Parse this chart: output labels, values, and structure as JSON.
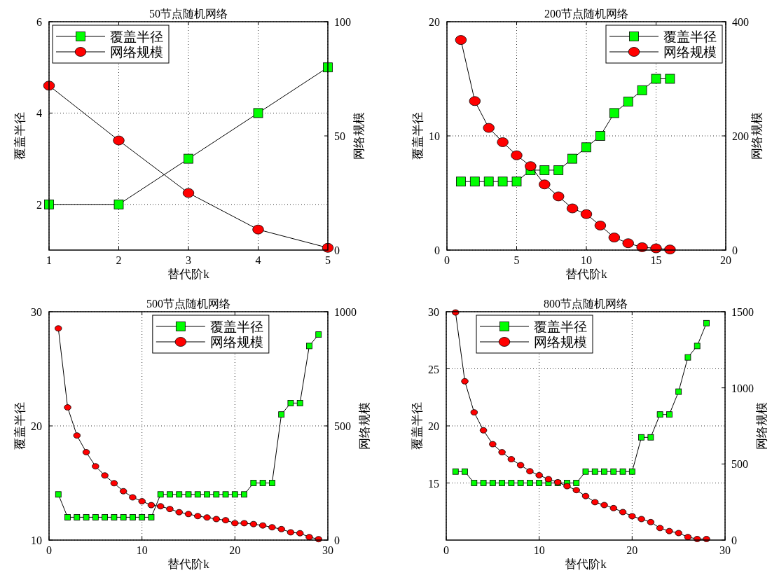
{
  "chart_data": [
    {
      "type": "line",
      "title": "50节点随机网络",
      "xlabel": "替代阶k",
      "ylabel": "覆盖半径",
      "y2label": "网络规模",
      "x": [
        1,
        2,
        3,
        4,
        5
      ],
      "xlim": [
        1,
        5
      ],
      "xticks": [
        1,
        2,
        3,
        4,
        5
      ],
      "ylim": [
        1,
        6
      ],
      "yticks": [
        2,
        4,
        6
      ],
      "y2lim": [
        0,
        100
      ],
      "y2ticks": [
        0,
        50,
        100
      ],
      "grid": true,
      "legend": "top left",
      "series": [
        {
          "name": "覆盖半径",
          "color": "#00ff00",
          "marker": "square",
          "values": [
            2,
            2,
            3,
            4,
            5
          ]
        },
        {
          "name": "网络规模",
          "color": "#ff0000",
          "marker": "circle",
          "axis": "y2",
          "values": [
            72,
            48,
            25,
            9,
            1
          ]
        }
      ]
    },
    {
      "type": "line",
      "title": "200节点随机网络",
      "xlabel": "替代阶k",
      "ylabel": "覆盖半径",
      "y2label": "网络规模",
      "x": [
        1,
        2,
        3,
        4,
        5,
        6,
        7,
        8,
        9,
        10,
        11,
        12,
        13,
        14,
        15,
        16
      ],
      "xlim": [
        0,
        20
      ],
      "xticks": [
        0,
        5,
        10,
        15,
        20
      ],
      "ylim": [
        0,
        20
      ],
      "yticks": [
        0,
        10,
        20
      ],
      "y2lim": [
        0,
        400
      ],
      "y2ticks": [
        0,
        200,
        400
      ],
      "grid": true,
      "legend": "top right",
      "series": [
        {
          "name": "覆盖半径",
          "color": "#00ff00",
          "marker": "square",
          "values": [
            6,
            6,
            6,
            6,
            6,
            7,
            7,
            7,
            8,
            9,
            10,
            12,
            13,
            14,
            15,
            15
          ]
        },
        {
          "name": "网络规模",
          "color": "#ff0000",
          "marker": "circle",
          "axis": "y2",
          "values": [
            368,
            261,
            214,
            189,
            166,
            147,
            115,
            94,
            73,
            63,
            43,
            22,
            12,
            5,
            3,
            1
          ]
        }
      ]
    },
    {
      "type": "line",
      "title": "500节点随机网络",
      "xlabel": "替代阶k",
      "ylabel": "覆盖半径",
      "y2label": "网络规模",
      "x": [
        1,
        2,
        3,
        4,
        5,
        6,
        7,
        8,
        9,
        10,
        11,
        12,
        13,
        14,
        15,
        16,
        17,
        18,
        19,
        20,
        21,
        22,
        23,
        24,
        25,
        26,
        27,
        28,
        29
      ],
      "xlim": [
        0,
        30
      ],
      "xticks": [
        0,
        10,
        20,
        30
      ],
      "ylim": [
        10,
        30
      ],
      "yticks": [
        10,
        20,
        30
      ],
      "y2lim": [
        0,
        1000
      ],
      "y2ticks": [
        0,
        500,
        1000
      ],
      "grid": true,
      "legend": "top",
      "series": [
        {
          "name": "覆盖半径",
          "color": "#00ff00",
          "marker": "square",
          "values": [
            14,
            12,
            12,
            12,
            12,
            12,
            12,
            12,
            12,
            12,
            12,
            14,
            14,
            14,
            14,
            14,
            14,
            14,
            14,
            14,
            14,
            15,
            15,
            15,
            21,
            22,
            22,
            27,
            28
          ]
        },
        {
          "name": "网络规模",
          "color": "#ff0000",
          "marker": "circle",
          "axis": "y2",
          "values": [
            927,
            581,
            458,
            385,
            323,
            283,
            249,
            214,
            187,
            170,
            153,
            148,
            136,
            122,
            114,
            105,
            99,
            92,
            87,
            74,
            74,
            70,
            64,
            56,
            48,
            34,
            30,
            13,
            4
          ]
        }
      ]
    },
    {
      "type": "line",
      "title": "800节点随机网络",
      "xlabel": "替代阶k",
      "ylabel": "覆盖半径",
      "y2label": "网络规模",
      "x": [
        1,
        2,
        3,
        4,
        5,
        6,
        7,
        8,
        9,
        10,
        11,
        12,
        13,
        14,
        15,
        16,
        17,
        18,
        19,
        20,
        21,
        22,
        23,
        24,
        25,
        26,
        27,
        28
      ],
      "xlim": [
        0,
        30
      ],
      "xticks": [
        0,
        10,
        20,
        30
      ],
      "ylim": [
        10,
        30
      ],
      "yticks": [
        15,
        20,
        25,
        30
      ],
      "y2lim": [
        0,
        1500
      ],
      "y2ticks": [
        0,
        500,
        1000,
        1500
      ],
      "grid": true,
      "legend": "top left",
      "series": [
        {
          "name": "覆盖半径",
          "color": "#00ff00",
          "marker": "square",
          "values": [
            16,
            16,
            15,
            15,
            15,
            15,
            15,
            15,
            15,
            15,
            15,
            15,
            15,
            15,
            16,
            16,
            16,
            16,
            16,
            16,
            19,
            19,
            21,
            21,
            23,
            26,
            27,
            29
          ]
        },
        {
          "name": "网络规模",
          "color": "#ff0000",
          "marker": "circle",
          "axis": "y2",
          "values": [
            1495,
            1043,
            839,
            721,
            630,
            577,
            531,
            492,
            452,
            426,
            400,
            380,
            354,
            328,
            289,
            249,
            230,
            210,
            184,
            157,
            138,
            118,
            79,
            59,
            46,
            20,
            7,
            7
          ]
        }
      ]
    }
  ]
}
